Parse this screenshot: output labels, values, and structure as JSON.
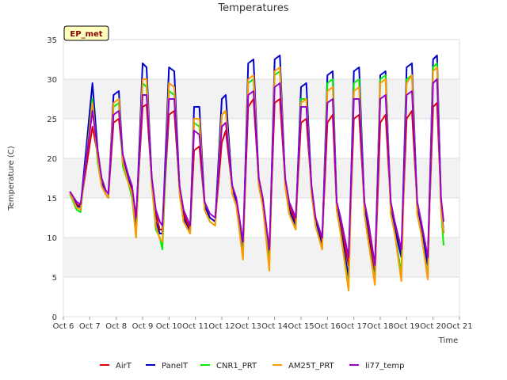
{
  "chart_data": {
    "type": "line",
    "title": "Temperatures",
    "xlabel": "Time",
    "ylabel": "Temperature (C)",
    "badge": "EP_met",
    "xlim": [
      6,
      21
    ],
    "ylim": [
      0,
      35
    ],
    "x_ticks": [
      {
        "value": 6,
        "label": "Oct 6"
      },
      {
        "value": 7,
        "label": "Oct 7"
      },
      {
        "value": 8,
        "label": "Oct 8"
      },
      {
        "value": 9,
        "label": "Oct 9"
      },
      {
        "value": 10,
        "label": "Oct 10"
      },
      {
        "value": 11,
        "label": "Oct 11"
      },
      {
        "value": 12,
        "label": "Oct 12"
      },
      {
        "value": 13,
        "label": "Oct 13"
      },
      {
        "value": 14,
        "label": "Oct 14"
      },
      {
        "value": 15,
        "label": "Oct 15"
      },
      {
        "value": 16,
        "label": "Oct 16"
      },
      {
        "value": 17,
        "label": "Oct 17"
      },
      {
        "value": 18,
        "label": "Oct 18"
      },
      {
        "value": 19,
        "label": "Oct 19"
      },
      {
        "value": 20,
        "label": "Oct 20"
      },
      {
        "value": 21,
        "label": "Oct 21"
      }
    ],
    "y_ticks": [
      0,
      5,
      10,
      15,
      20,
      25,
      30,
      35
    ],
    "series": [
      {
        "name": "AirT",
        "color": "#dd0000",
        "x": [
          6.25,
          6.5,
          6.65,
          7.1,
          7.3,
          7.45,
          7.6,
          7.7,
          7.9,
          8.1,
          8.25,
          8.45,
          8.6,
          8.75,
          9.0,
          9.15,
          9.35,
          9.5,
          9.65,
          9.75,
          10.0,
          10.2,
          10.4,
          10.55,
          10.8,
          10.95,
          11.15,
          11.35,
          11.55,
          11.75,
          12.0,
          12.15,
          12.4,
          12.55,
          12.8,
          13.0,
          13.2,
          13.4,
          13.55,
          13.8,
          14.0,
          14.2,
          14.4,
          14.55,
          14.8,
          15.0,
          15.2,
          15.4,
          15.55,
          15.8,
          16.0,
          16.2,
          16.35,
          16.5,
          16.8,
          17.0,
          17.2,
          17.4,
          17.55,
          17.8,
          18.0,
          18.2,
          18.4,
          18.55,
          18.8,
          19.0,
          19.2,
          19.4,
          19.55,
          19.8,
          20.0,
          20.15,
          20.3,
          20.4
        ],
        "y": [
          15.8,
          14.2,
          14.0,
          24.0,
          20.5,
          17.0,
          15.5,
          15.0,
          24.5,
          25.0,
          20.0,
          17.5,
          16.0,
          12.0,
          26.5,
          26.8,
          17.0,
          13.0,
          11.0,
          11.0,
          25.5,
          26.0,
          16.0,
          13.0,
          11.0,
          21.0,
          21.5,
          14.0,
          12.5,
          12.0,
          22.0,
          23.5,
          16.0,
          14.5,
          8.5,
          26.5,
          27.5,
          17.0,
          14.5,
          8.0,
          27.0,
          27.5,
          17.0,
          14.0,
          12.0,
          24.5,
          25.0,
          16.0,
          12.5,
          9.5,
          24.5,
          25.5,
          14.0,
          11.5,
          6.5,
          25.0,
          25.5,
          14.0,
          11.0,
          5.0,
          24.5,
          25.5,
          14.0,
          11.5,
          8.0,
          25.0,
          26.0,
          14.0,
          11.5,
          7.0,
          26.5,
          27.0,
          14.5,
          10.5
        ]
      },
      {
        "name": "PanelT",
        "color": "#0000cc",
        "x": [
          6.25,
          6.5,
          6.65,
          7.1,
          7.3,
          7.45,
          7.6,
          7.7,
          7.9,
          8.1,
          8.25,
          8.45,
          8.6,
          8.75,
          9.0,
          9.15,
          9.35,
          9.5,
          9.65,
          9.75,
          10.0,
          10.2,
          10.4,
          10.55,
          10.8,
          10.95,
          11.15,
          11.35,
          11.55,
          11.75,
          12.0,
          12.15,
          12.4,
          12.55,
          12.8,
          13.0,
          13.2,
          13.4,
          13.55,
          13.8,
          14.0,
          14.2,
          14.4,
          14.55,
          14.8,
          15.0,
          15.2,
          15.4,
          15.55,
          15.8,
          16.0,
          16.2,
          16.35,
          16.5,
          16.8,
          17.0,
          17.2,
          17.4,
          17.55,
          17.8,
          18.0,
          18.2,
          18.4,
          18.55,
          18.8,
          19.0,
          19.2,
          19.4,
          19.55,
          19.8,
          20.0,
          20.15,
          20.3,
          20.4
        ],
        "y": [
          15.8,
          14.0,
          13.8,
          29.5,
          21.0,
          17.0,
          15.5,
          15.0,
          28.0,
          28.5,
          20.0,
          17.5,
          15.5,
          11.0,
          32.0,
          31.5,
          17.0,
          12.0,
          10.5,
          10.5,
          31.5,
          31.0,
          16.0,
          12.5,
          10.5,
          26.5,
          26.5,
          14.0,
          12.5,
          12.0,
          27.5,
          28.0,
          16.0,
          14.5,
          8.0,
          32.0,
          32.5,
          17.0,
          14.5,
          7.0,
          32.5,
          33.0,
          17.0,
          13.5,
          11.5,
          29.0,
          29.5,
          16.0,
          12.0,
          9.0,
          30.5,
          31.0,
          14.0,
          11.0,
          5.0,
          31.0,
          31.5,
          14.0,
          10.0,
          4.5,
          30.5,
          31.0,
          13.5,
          11.0,
          7.5,
          31.5,
          32.0,
          13.5,
          11.0,
          6.5,
          32.5,
          33.0,
          14.5,
          10.5
        ]
      },
      {
        "name": "CNR1_PRT",
        "color": "#00ee00",
        "x": [
          6.25,
          6.5,
          6.65,
          7.1,
          7.3,
          7.45,
          7.6,
          7.7,
          7.9,
          8.1,
          8.25,
          8.45,
          8.6,
          8.75,
          9.0,
          9.15,
          9.35,
          9.5,
          9.65,
          9.75,
          10.0,
          10.2,
          10.4,
          10.55,
          10.8,
          10.95,
          11.15,
          11.35,
          11.55,
          11.75,
          12.0,
          12.15,
          12.4,
          12.55,
          12.8,
          13.0,
          13.2,
          13.4,
          13.55,
          13.8,
          14.0,
          14.2,
          14.4,
          14.55,
          14.8,
          15.0,
          15.2,
          15.4,
          15.55,
          15.8,
          16.0,
          16.2,
          16.35,
          16.5,
          16.8,
          17.0,
          17.2,
          17.4,
          17.55,
          17.8,
          18.0,
          18.2,
          18.4,
          18.55,
          18.8,
          19.0,
          19.2,
          19.4,
          19.55,
          19.8,
          20.0,
          20.15,
          20.3,
          20.4
        ],
        "y": [
          15.5,
          13.5,
          13.2,
          27.5,
          19.5,
          16.5,
          15.5,
          15.0,
          26.5,
          27.0,
          19.0,
          17.0,
          15.0,
          10.0,
          29.5,
          29.0,
          16.5,
          11.0,
          10.0,
          8.5,
          28.5,
          28.0,
          15.5,
          12.0,
          10.5,
          24.5,
          24.0,
          13.5,
          12.0,
          11.5,
          25.5,
          26.0,
          15.5,
          14.0,
          7.5,
          29.5,
          30.0,
          16.5,
          14.0,
          6.5,
          30.5,
          31.0,
          16.5,
          13.0,
          11.0,
          27.5,
          27.5,
          15.5,
          11.5,
          8.5,
          29.5,
          30.0,
          13.5,
          10.5,
          3.8,
          29.5,
          30.0,
          13.0,
          9.5,
          4.5,
          30.0,
          30.5,
          13.0,
          10.5,
          5.5,
          30.0,
          30.5,
          13.0,
          10.5,
          5.0,
          31.5,
          32.0,
          13.5,
          9.0
        ]
      },
      {
        "name": "AM25T_PRT",
        "color": "#ff9900",
        "x": [
          6.25,
          6.5,
          6.65,
          7.1,
          7.3,
          7.45,
          7.6,
          7.7,
          7.9,
          8.1,
          8.25,
          8.45,
          8.6,
          8.75,
          9.0,
          9.15,
          9.35,
          9.5,
          9.65,
          9.75,
          10.0,
          10.2,
          10.4,
          10.55,
          10.8,
          10.95,
          11.15,
          11.35,
          11.55,
          11.75,
          12.0,
          12.15,
          12.4,
          12.55,
          12.8,
          13.0,
          13.2,
          13.4,
          13.55,
          13.8,
          14.0,
          14.2,
          14.4,
          14.55,
          14.8,
          15.0,
          15.2,
          15.4,
          15.55,
          15.8,
          16.0,
          16.2,
          16.35,
          16.5,
          16.8,
          17.0,
          17.2,
          17.4,
          17.55,
          17.8,
          18.0,
          18.2,
          18.4,
          18.55,
          18.8,
          19.0,
          19.2,
          19.4,
          19.55,
          19.8,
          20.0,
          20.15,
          20.3,
          20.4
        ],
        "y": [
          15.6,
          13.8,
          13.5,
          27.0,
          20.0,
          16.5,
          15.5,
          15.0,
          27.0,
          27.5,
          19.5,
          17.0,
          15.5,
          10.0,
          30.0,
          30.0,
          16.5,
          11.5,
          9.8,
          9.5,
          29.5,
          29.0,
          15.5,
          12.0,
          10.5,
          25.0,
          25.0,
          13.5,
          12.0,
          11.5,
          25.5,
          26.0,
          15.5,
          14.0,
          7.2,
          30.0,
          30.5,
          16.5,
          14.0,
          5.8,
          31.0,
          31.5,
          16.5,
          13.0,
          11.0,
          27.0,
          27.5,
          15.5,
          11.5,
          8.5,
          28.5,
          29.0,
          13.5,
          10.5,
          3.3,
          28.5,
          29.0,
          13.0,
          9.5,
          4.0,
          29.5,
          30.0,
          13.0,
          10.5,
          4.5,
          29.5,
          30.5,
          13.0,
          10.5,
          4.7,
          31.0,
          31.5,
          13.5,
          10.5
        ]
      },
      {
        "name": "li77_temp",
        "color": "#9900cc",
        "x": [
          6.25,
          6.5,
          6.65,
          7.1,
          7.3,
          7.45,
          7.6,
          7.7,
          7.9,
          8.1,
          8.25,
          8.45,
          8.6,
          8.75,
          9.0,
          9.15,
          9.35,
          9.5,
          9.65,
          9.75,
          10.0,
          10.2,
          10.4,
          10.55,
          10.8,
          10.95,
          11.15,
          11.35,
          11.55,
          11.75,
          12.0,
          12.15,
          12.4,
          12.55,
          12.8,
          13.0,
          13.2,
          13.4,
          13.55,
          13.8,
          14.0,
          14.2,
          14.4,
          14.55,
          14.8,
          15.0,
          15.2,
          15.4,
          15.55,
          15.8,
          16.0,
          16.2,
          16.35,
          16.5,
          16.8,
          17.0,
          17.2,
          17.4,
          17.55,
          17.8,
          18.0,
          18.2,
          18.4,
          18.55,
          18.8,
          19.0,
          19.2,
          19.4,
          19.55,
          19.8,
          20.0,
          20.15,
          20.3,
          20.4
        ],
        "y": [
          15.8,
          14.5,
          14.2,
          26.0,
          21.0,
          17.5,
          16.0,
          15.5,
          25.5,
          26.0,
          20.5,
          18.0,
          16.5,
          12.5,
          28.0,
          28.0,
          17.5,
          13.5,
          12.0,
          11.5,
          27.5,
          27.5,
          16.5,
          13.5,
          11.5,
          23.5,
          23.0,
          14.5,
          13.0,
          12.5,
          24.0,
          24.5,
          16.5,
          15.0,
          9.5,
          28.0,
          28.5,
          17.5,
          15.0,
          8.5,
          29.0,
          29.5,
          17.5,
          14.5,
          12.5,
          26.5,
          26.5,
          16.5,
          12.5,
          10.0,
          27.0,
          27.5,
          14.5,
          12.5,
          7.5,
          27.5,
          27.5,
          14.5,
          12.0,
          6.5,
          27.5,
          28.0,
          14.5,
          12.0,
          8.5,
          28.0,
          28.5,
          14.5,
          12.0,
          7.5,
          29.5,
          30.0,
          15.0,
          12.0
        ]
      }
    ]
  }
}
